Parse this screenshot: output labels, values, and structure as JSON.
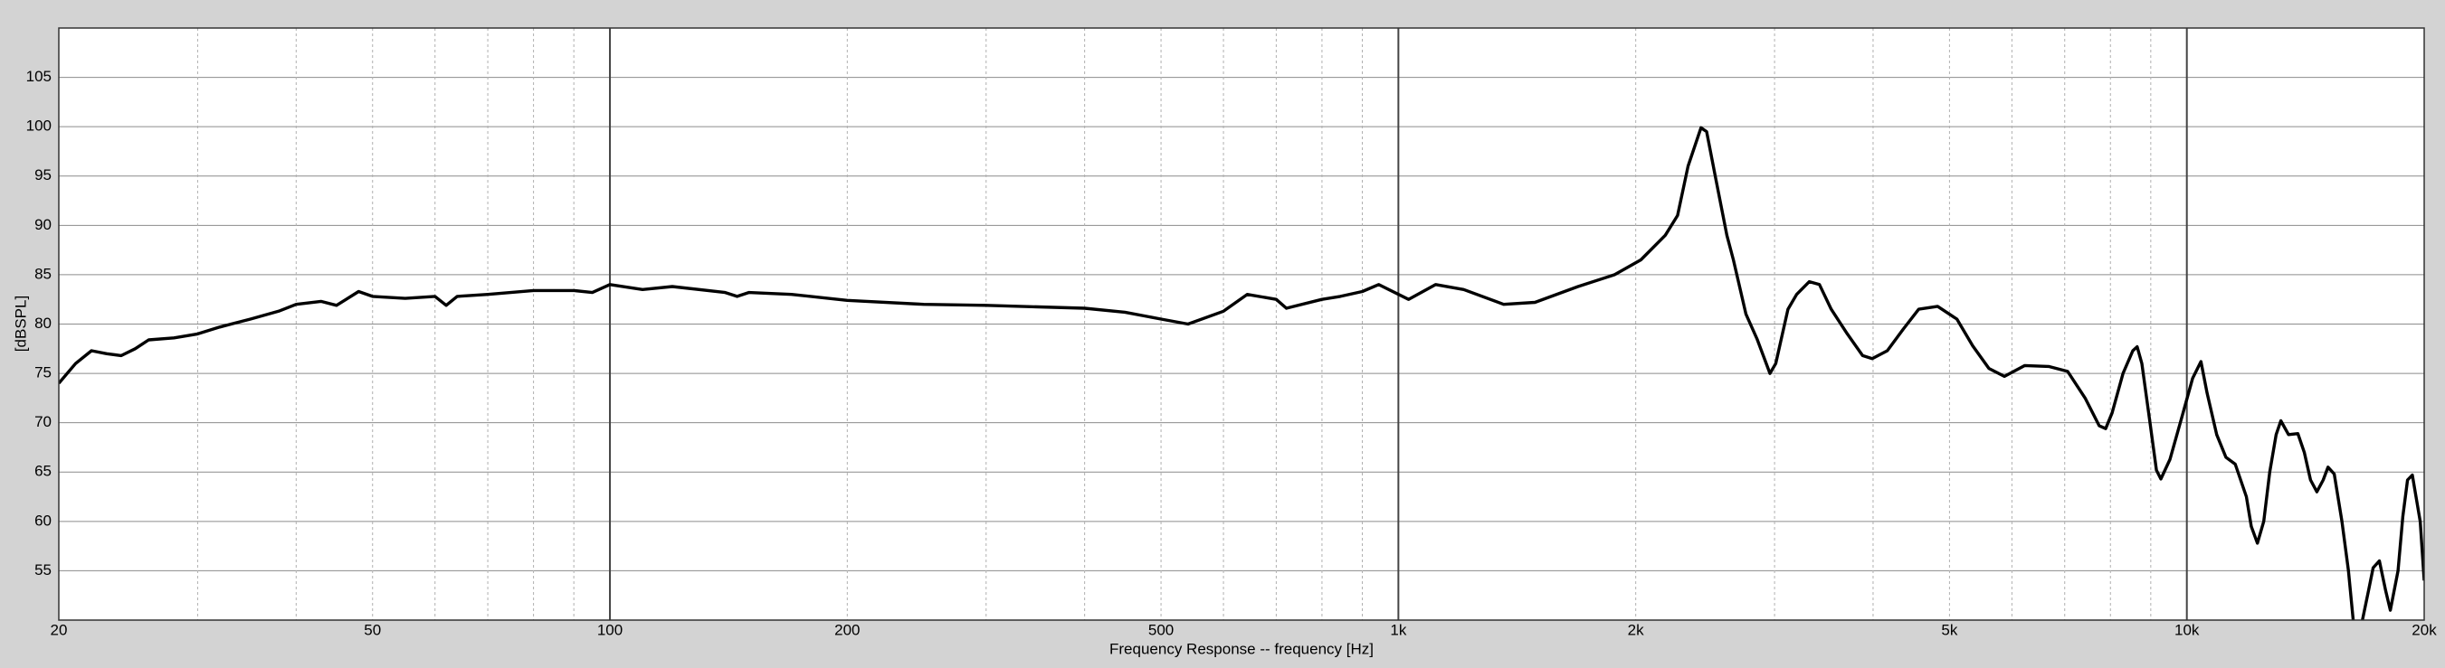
{
  "chart_data": {
    "type": "line",
    "xlabel": "Frequency Response -- frequency [Hz]",
    "ylabel": "[dBSPL]",
    "xscale": "log",
    "color": "#000000",
    "xlim": [
      20,
      20000
    ],
    "ylim": [
      50,
      110
    ],
    "xticks": [
      20,
      50,
      100,
      200,
      500,
      {
        "value": 1000,
        "label": "1k"
      },
      {
        "value": 2000,
        "label": "2k"
      },
      {
        "value": 5000,
        "label": "5k"
      },
      {
        "value": 10000,
        "label": "10k"
      },
      {
        "value": 20000,
        "label": "20k"
      }
    ],
    "x_minor_grid": [
      30,
      40,
      60,
      70,
      80,
      90,
      300,
      400,
      600,
      700,
      800,
      900,
      3000,
      4000,
      6000,
      7000,
      8000,
      9000
    ],
    "x_decade_lines": [
      100,
      1000,
      10000
    ],
    "yticks": [
      55,
      60,
      65,
      70,
      75,
      80,
      85,
      90,
      95,
      100,
      105
    ],
    "grid": true,
    "x": [
      20,
      21,
      22,
      23,
      24,
      25,
      26,
      28,
      30,
      32,
      35,
      38,
      40,
      43,
      45,
      48,
      50,
      55,
      60,
      62,
      64,
      70,
      80,
      90,
      95,
      100,
      110,
      120,
      140,
      145,
      150,
      170,
      200,
      250,
      300,
      400,
      450,
      500,
      541,
      600,
      643,
      700,
      721,
      800,
      844,
      900,
      944,
      1030,
      1115,
      1210,
      1360,
      1490,
      1690,
      1880,
      2030,
      2180,
      2260,
      2330,
      2420,
      2460,
      2530,
      2610,
      2660,
      2760,
      2850,
      2960,
      3010,
      3120,
      3200,
      3320,
      3420,
      3540,
      3710,
      3880,
      3990,
      4170,
      4370,
      4570,
      4830,
      5110,
      5350,
      5610,
      5870,
      6230,
      6680,
      7060,
      7430,
      7740,
      7890,
      8040,
      8300,
      8540,
      8650,
      8770,
      8980,
      9150,
      9270,
      9520,
      9890,
      10170,
      10420,
      10610,
      10910,
      11210,
      11520,
      11900,
      12070,
      12290,
      12520,
      12740,
      12980,
      13160,
      13460,
      13830,
      14090,
      14350,
      14620,
      14890,
      15100,
      15380,
      15730,
      16030,
      16300,
      16600,
      17000,
      17230,
      17550,
      17870,
      18120,
      18530,
      18790,
      19050,
      19320,
      19770,
      20000
    ],
    "values": [
      74,
      76,
      77.3,
      77,
      76.8,
      77.5,
      78.4,
      78.6,
      79,
      79.7,
      80.5,
      81.3,
      82,
      82.3,
      81.9,
      83.3,
      82.8,
      82.6,
      82.8,
      81.9,
      82.8,
      83,
      83.4,
      83.4,
      83.2,
      84,
      83.5,
      83.8,
      83.2,
      82.8,
      83.2,
      83,
      82.4,
      82,
      81.9,
      81.6,
      81.2,
      80.5,
      80,
      81.3,
      83,
      82.5,
      81.6,
      82.5,
      82.8,
      83.3,
      84,
      82.5,
      84,
      83.5,
      82,
      82.2,
      83.8,
      85,
      86.5,
      89,
      91,
      96,
      99.9,
      99.5,
      94.5,
      89,
      86.5,
      81,
      78.5,
      75,
      76,
      81.5,
      83,
      84.3,
      84,
      81.5,
      79,
      76.8,
      76.5,
      77.3,
      79.5,
      81.5,
      81.8,
      80.5,
      77.8,
      75.5,
      74.7,
      75.8,
      75.7,
      75.2,
      72.5,
      69.7,
      69.4,
      71,
      75,
      77.3,
      77.7,
      76,
      70,
      65.2,
      64.3,
      66.3,
      71,
      74.5,
      76.2,
      73,
      68.8,
      66.5,
      65.8,
      62.5,
      59.5,
      57.8,
      60,
      65,
      68.8,
      70.2,
      68.8,
      68.9,
      67,
      64.2,
      63,
      64.2,
      65.5,
      64.8,
      60,
      55,
      49,
      49,
      53,
      55.3,
      56,
      53,
      51,
      55,
      60.5,
      64.2,
      64.7,
      60,
      54
    ]
  }
}
